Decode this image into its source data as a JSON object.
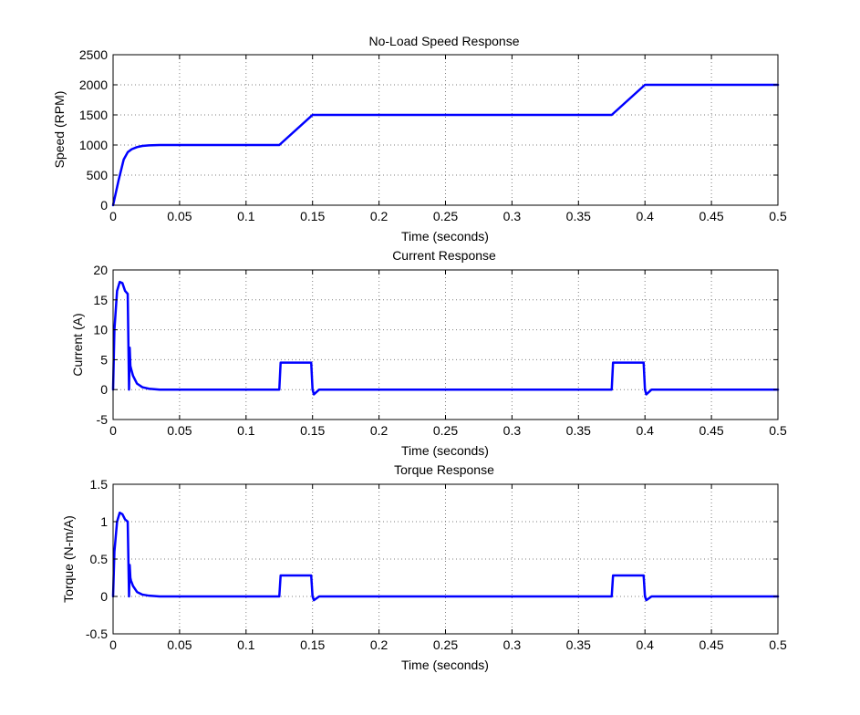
{
  "figure": {
    "background": "#ffffff"
  },
  "chart_data": [
    {
      "type": "line",
      "title": "No-Load Speed Response",
      "xlabel": "Time (seconds)",
      "ylabel": "Speed (RPM)",
      "xlim": [
        0,
        0.5
      ],
      "ylim": [
        0,
        2500
      ],
      "xticks": [
        0,
        0.05,
        0.1,
        0.15,
        0.2,
        0.25,
        0.3,
        0.35,
        0.4,
        0.45,
        0.5
      ],
      "xtick_labels": [
        "0",
        "0.05",
        "0.1",
        "0.15",
        "0.2",
        "0.25",
        "0.3",
        "0.35",
        "0.4",
        "0.45",
        "0.5"
      ],
      "yticks": [
        0,
        500,
        1000,
        1500,
        2000,
        2500
      ],
      "ytick_labels": [
        "0",
        "500",
        "1000",
        "1500",
        "2000",
        "2500"
      ],
      "grid": true,
      "color": "#0000ff",
      "series": [
        {
          "x": [
            0,
            0.004,
            0.008,
            0.011,
            0.014,
            0.018,
            0.022,
            0.027,
            0.035,
            0.05,
            0.125,
            0.15,
            0.375,
            0.4,
            0.5
          ],
          "y": [
            0,
            400,
            760,
            880,
            930,
            965,
            985,
            995,
            1000,
            1000,
            1000,
            1500,
            1500,
            2000,
            2000
          ]
        }
      ]
    },
    {
      "type": "line",
      "title": "Current Response",
      "xlabel": "Time (seconds)",
      "ylabel": "Current (A)",
      "xlim": [
        0,
        0.5
      ],
      "ylim": [
        -5,
        20
      ],
      "xticks": [
        0,
        0.05,
        0.1,
        0.15,
        0.2,
        0.25,
        0.3,
        0.35,
        0.4,
        0.45,
        0.5
      ],
      "xtick_labels": [
        "0",
        "0.05",
        "0.1",
        "0.15",
        "0.2",
        "0.25",
        "0.3",
        "0.35",
        "0.4",
        "0.45",
        "0.5"
      ],
      "yticks": [
        -5,
        0,
        5,
        10,
        15,
        20
      ],
      "ytick_labels": [
        "-5",
        "0",
        "5",
        "10",
        "15",
        "20"
      ],
      "grid": true,
      "color": "#0000ff",
      "series": [
        {
          "x": [
            0,
            0.001,
            0.003,
            0.005,
            0.007,
            0.009,
            0.011,
            0.012,
            0.0125,
            0.013,
            0.0135,
            0.015,
            0.018,
            0.022,
            0.027,
            0.035,
            0.05,
            0.125,
            0.126,
            0.149,
            0.15,
            0.151,
            0.155,
            0.375,
            0.376,
            0.399,
            0.4,
            0.401,
            0.405,
            0.5
          ],
          "y": [
            0,
            10,
            16.5,
            18,
            17.8,
            16.5,
            16,
            0,
            7,
            4,
            3.5,
            2.3,
            1,
            0.4,
            0.15,
            0,
            0,
            0,
            4.5,
            4.5,
            0,
            -0.8,
            0,
            0,
            4.5,
            4.5,
            0,
            -0.8,
            0,
            0
          ]
        }
      ]
    },
    {
      "type": "line",
      "title": "Torque Response",
      "xlabel": "Time (seconds)",
      "ylabel": "Torque (N-m/A)",
      "xlim": [
        0,
        0.5
      ],
      "ylim": [
        -0.5,
        1.5
      ],
      "xticks": [
        0,
        0.05,
        0.1,
        0.15,
        0.2,
        0.25,
        0.3,
        0.35,
        0.4,
        0.45,
        0.5
      ],
      "xtick_labels": [
        "0",
        "0.05",
        "0.1",
        "0.15",
        "0.2",
        "0.25",
        "0.3",
        "0.35",
        "0.4",
        "0.45",
        "0.5"
      ],
      "yticks": [
        -0.5,
        0,
        0.5,
        1,
        1.5
      ],
      "ytick_labels": [
        "-0.5",
        "0",
        "0.5",
        "1",
        "1.5"
      ],
      "grid": true,
      "color": "#0000ff",
      "series": [
        {
          "x": [
            0,
            0.001,
            0.003,
            0.005,
            0.007,
            0.009,
            0.011,
            0.012,
            0.0125,
            0.013,
            0.0135,
            0.015,
            0.018,
            0.022,
            0.027,
            0.035,
            0.05,
            0.125,
            0.126,
            0.149,
            0.15,
            0.151,
            0.155,
            0.375,
            0.376,
            0.399,
            0.4,
            0.401,
            0.405,
            0.5
          ],
          "y": [
            0,
            0.6,
            1.0,
            1.12,
            1.1,
            1.03,
            1.0,
            0,
            0.42,
            0.25,
            0.21,
            0.14,
            0.06,
            0.025,
            0.01,
            0,
            0,
            0,
            0.28,
            0.28,
            0,
            -0.05,
            0,
            0,
            0.28,
            0.28,
            0,
            -0.05,
            0,
            0
          ]
        }
      ]
    }
  ]
}
